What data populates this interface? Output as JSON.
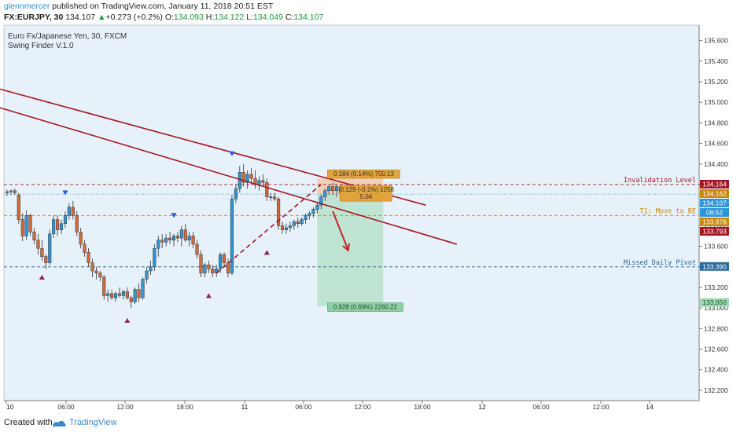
{
  "header": {
    "user": "glennmercer",
    "published": " published on TradingView.com, January 11, 2018 20:51 EST",
    "symbol": "FX:EURJPY, 30",
    "last": "134.107",
    "change": "+0.273 (+0.2%)",
    "o_label": "O:",
    "o": "134.093",
    "h_label": "H:",
    "h": "134.122",
    "l_label": "L:",
    "l": "134.049",
    "c_label": "C:",
    "c": "134.107"
  },
  "legend": {
    "title": "Euro Fx/Japanese Yen, 30, FXCM",
    "indicator": "Swing Finder V.1.0"
  },
  "footer": {
    "created": "Created with",
    "brand": "TradingView"
  },
  "colors": {
    "bg": "#e6f1f9",
    "up": "#2f95d6",
    "down": "#d46a3c",
    "trend": "#a31722",
    "target": "#9fd9b4",
    "stop": "#f2c6a6"
  },
  "chart_data": {
    "type": "candlestick",
    "ylim": [
      132.1,
      135.75
    ],
    "y_ticks": [
      135.6,
      135.4,
      135.2,
      135.0,
      134.8,
      134.6,
      134.4,
      134.2,
      134.0,
      133.8,
      133.6,
      133.4,
      133.2,
      133.0,
      132.8,
      132.6,
      132.4,
      132.2
    ],
    "x_ticks": [
      "10",
      "06:00",
      "12:00",
      "18:00",
      "11",
      "06:00",
      "12:00",
      "18:00",
      "12",
      "06:00",
      "12:00",
      "14"
    ],
    "ohlc": [
      [
        134.12,
        134.15,
        134.09,
        134.13
      ],
      [
        134.13,
        134.15,
        134.1,
        134.14
      ],
      [
        134.14,
        134.16,
        134.1,
        134.12
      ],
      [
        134.1,
        134.12,
        133.82,
        133.86
      ],
      [
        133.86,
        133.92,
        133.65,
        133.7
      ],
      [
        133.7,
        133.95,
        133.66,
        133.9
      ],
      [
        133.9,
        133.92,
        133.7,
        133.74
      ],
      [
        133.74,
        133.78,
        133.62,
        133.66
      ],
      [
        133.66,
        133.72,
        133.52,
        133.58
      ],
      [
        133.58,
        133.66,
        133.46,
        133.5
      ],
      [
        133.5,
        133.52,
        133.38,
        133.44
      ],
      [
        133.44,
        133.76,
        133.42,
        133.72
      ],
      [
        133.72,
        133.9,
        133.68,
        133.86
      ],
      [
        133.86,
        133.9,
        133.7,
        133.76
      ],
      [
        133.76,
        133.86,
        133.72,
        133.82
      ],
      [
        133.82,
        133.94,
        133.78,
        133.9
      ],
      [
        133.9,
        134.02,
        133.86,
        133.98
      ],
      [
        133.98,
        134.04,
        133.86,
        133.9
      ],
      [
        133.9,
        133.94,
        133.7,
        133.74
      ],
      [
        133.74,
        133.78,
        133.58,
        133.62
      ],
      [
        133.62,
        133.66,
        133.5,
        133.54
      ],
      [
        133.54,
        133.58,
        133.4,
        133.44
      ],
      [
        133.44,
        133.48,
        133.3,
        133.36
      ],
      [
        133.36,
        133.4,
        133.28,
        133.34
      ],
      [
        133.34,
        133.36,
        133.26,
        133.3
      ],
      [
        133.3,
        133.32,
        133.08,
        133.12
      ],
      [
        133.12,
        133.18,
        133.06,
        133.14
      ],
      [
        133.14,
        133.18,
        133.08,
        133.1
      ],
      [
        133.1,
        133.16,
        133.06,
        133.14
      ],
      [
        133.14,
        133.2,
        133.1,
        133.12
      ],
      [
        133.12,
        133.18,
        133.08,
        133.16
      ],
      [
        133.16,
        133.2,
        133.08,
        133.1
      ],
      [
        133.1,
        133.12,
        133.0,
        133.06
      ],
      [
        133.06,
        133.2,
        133.04,
        133.18
      ],
      [
        133.18,
        133.24,
        133.06,
        133.1
      ],
      [
        133.1,
        133.3,
        133.08,
        133.28
      ],
      [
        133.28,
        133.4,
        133.24,
        133.36
      ],
      [
        133.36,
        133.46,
        133.32,
        133.4
      ],
      [
        133.4,
        133.62,
        133.36,
        133.58
      ],
      [
        133.58,
        133.7,
        133.5,
        133.66
      ],
      [
        133.66,
        133.72,
        133.58,
        133.64
      ],
      [
        133.64,
        133.72,
        133.6,
        133.68
      ],
      [
        133.68,
        133.74,
        133.62,
        133.66
      ],
      [
        133.66,
        133.72,
        133.6,
        133.7
      ],
      [
        133.7,
        133.74,
        133.64,
        133.68
      ],
      [
        133.68,
        133.8,
        133.6,
        133.76
      ],
      [
        133.76,
        133.82,
        133.64,
        133.66
      ],
      [
        133.66,
        133.74,
        133.6,
        133.7
      ],
      [
        133.7,
        133.74,
        133.58,
        133.62
      ],
      [
        133.62,
        133.66,
        133.48,
        133.52
      ],
      [
        133.52,
        133.56,
        133.3,
        133.34
      ],
      [
        133.34,
        133.44,
        133.3,
        133.42
      ],
      [
        133.42,
        133.46,
        133.34,
        133.38
      ],
      [
        133.38,
        133.42,
        133.3,
        133.34
      ],
      [
        133.34,
        133.42,
        133.3,
        133.38
      ],
      [
        133.38,
        133.54,
        133.34,
        133.52
      ],
      [
        133.52,
        133.54,
        133.4,
        133.44
      ],
      [
        133.44,
        133.48,
        133.3,
        133.34
      ],
      [
        133.34,
        134.1,
        133.32,
        134.06
      ],
      [
        134.06,
        134.2,
        134.02,
        134.16
      ],
      [
        134.16,
        134.38,
        134.12,
        134.32
      ],
      [
        134.32,
        134.4,
        134.18,
        134.22
      ],
      [
        134.22,
        134.34,
        134.16,
        134.3
      ],
      [
        134.3,
        134.36,
        134.2,
        134.26
      ],
      [
        134.26,
        134.34,
        134.16,
        134.2
      ],
      [
        134.2,
        134.28,
        134.14,
        134.24
      ],
      [
        134.24,
        134.3,
        134.18,
        134.22
      ],
      [
        134.22,
        134.26,
        134.04,
        134.08
      ],
      [
        134.08,
        134.12,
        134.04,
        134.08
      ],
      [
        134.08,
        134.12,
        134.04,
        134.06
      ],
      [
        134.06,
        134.08,
        133.76,
        133.8
      ],
      [
        133.8,
        133.84,
        133.72,
        133.76
      ],
      [
        133.76,
        133.82,
        133.72,
        133.78
      ],
      [
        133.78,
        133.84,
        133.74,
        133.8
      ],
      [
        133.8,
        133.86,
        133.76,
        133.84
      ],
      [
        133.84,
        133.88,
        133.78,
        133.82
      ],
      [
        133.82,
        133.88,
        133.8,
        133.86
      ],
      [
        133.86,
        133.92,
        133.82,
        133.9
      ],
      [
        133.9,
        133.94,
        133.86,
        133.92
      ],
      [
        133.92,
        133.98,
        133.88,
        133.96
      ],
      [
        133.96,
        134.02,
        133.92,
        134.0
      ],
      [
        134.0,
        134.1,
        133.96,
        134.08
      ],
      [
        134.08,
        134.16,
        134.04,
        134.14
      ],
      [
        134.14,
        134.2,
        134.1,
        134.18
      ],
      [
        134.18,
        134.22,
        134.1,
        134.14
      ],
      [
        134.14,
        134.2,
        134.08,
        134.18
      ],
      [
        134.18,
        134.2,
        134.08,
        134.12
      ],
      [
        134.12,
        134.14,
        134.05,
        134.107
      ]
    ],
    "swing_down_markers": [
      [
        15,
        134.12
      ],
      [
        43,
        133.9
      ],
      [
        58,
        134.5
      ]
    ],
    "swing_up_markers": [
      [
        9,
        133.3
      ],
      [
        31,
        132.88
      ],
      [
        52,
        133.12
      ],
      [
        67,
        133.54
      ]
    ],
    "swing_down_color": "#1f5bd6",
    "swing_up_color": "#8b1f5a",
    "trendlines": [
      {
        "from": [
          -3,
          135.14
        ],
        "to": [
          108,
          134.0
        ]
      },
      {
        "from": [
          -3,
          134.96
        ],
        "to": [
          116,
          133.62
        ]
      }
    ],
    "dashed_trend": {
      "from": [
        54,
        133.34
      ],
      "to": [
        81,
        134.2
      ]
    },
    "levels": [
      {
        "label": "Invalidation Level",
        "price": 134.2,
        "tag": "134.164",
        "tag_color": "#a31722"
      },
      {
        "label": "T1:  Move to BE",
        "price": 133.9,
        "tag": "133.978",
        "tag_color": "#c8890f"
      },
      {
        "label": "Missed Daily Pivot",
        "price": 133.4,
        "tag": "133.390",
        "tag_color": "#2a6a9a"
      }
    ],
    "price_tags": [
      {
        "price": 134.162,
        "tag": "134.162",
        "color": "#c8890f"
      },
      {
        "price": 134.107,
        "tag": "134.107",
        "color": "#2f95d6"
      },
      {
        "price": 134.04,
        "tag": "08:52",
        "color": "#2f95d6"
      },
      {
        "price": 133.793,
        "tag": "133.793",
        "color": "#a31722"
      },
      {
        "price": 133.05,
        "tag": "133.050",
        "color": "#9fd9b4",
        "text_color": "#1f5a33"
      }
    ],
    "position": {
      "x_start": 80,
      "x_end": 97,
      "stop": 134.26,
      "entry": 134.107,
      "target": 133.02,
      "stop_label": "0.184 (0.14%) 750.13",
      "mid_label_1": "-0.129 (-0.1%) 1258",
      "mid_label_2": "5.04",
      "target_label": "0.928 (0.69%) 2260.22"
    },
    "arrow": {
      "from": [
        84,
        133.94
      ],
      "to": [
        88,
        133.56
      ]
    }
  }
}
